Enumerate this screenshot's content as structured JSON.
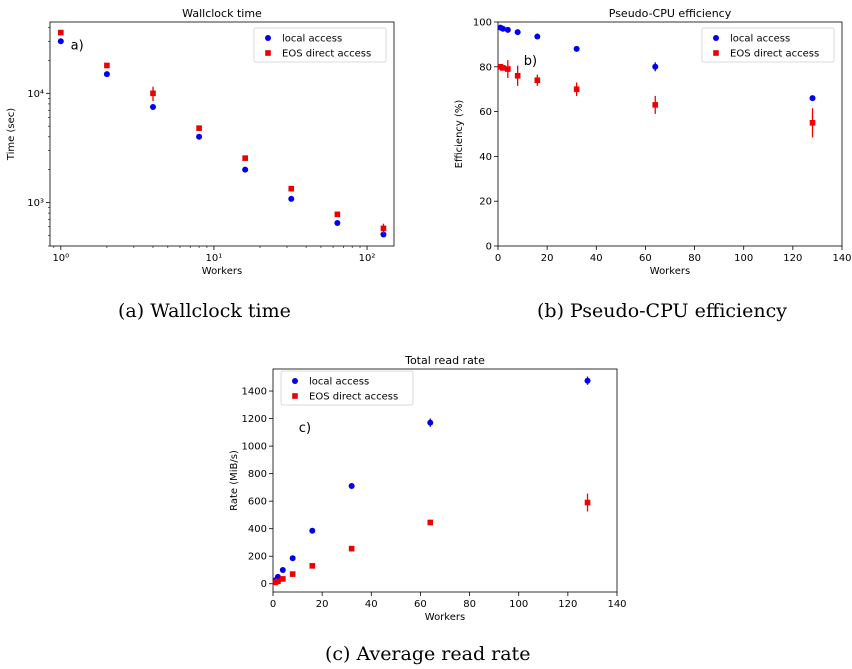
{
  "colors": {
    "local": "#0000ee",
    "eos": "#ee0000",
    "errorbar_local": "#0000ee",
    "errorbar_eos": "#ee0000"
  },
  "captions": {
    "a": "(a) Wallclock time",
    "b": "(b) Pseudo-CPU efficiency",
    "c": "(c) Average read rate"
  },
  "chart_data": [
    {
      "type": "scatter",
      "title": "Wallclock time",
      "panel_label": "a)",
      "xlabel": "Workers",
      "ylabel": "Time (sec)",
      "xscale": "log",
      "yscale": "log",
      "xlim": [
        0.85,
        150
      ],
      "ylim": [
        400,
        45000
      ],
      "xticks": [
        1,
        10,
        100
      ],
      "xtick_labels": [
        "10⁰",
        "10¹",
        "10²"
      ],
      "yticks": [
        1000,
        10000
      ],
      "ytick_labels": [
        "10³",
        "10⁴"
      ],
      "legend_position": "top-right",
      "grid": false,
      "series": [
        {
          "name": "local access",
          "marker": "circle",
          "color_key": "local",
          "x": [
            1,
            2,
            4,
            8,
            16,
            32,
            64,
            128
          ],
          "y": [
            30000,
            15000,
            7500,
            4000,
            2000,
            1080,
            650,
            510
          ],
          "yerr": [
            0,
            0,
            0,
            0,
            0,
            0,
            0,
            0
          ]
        },
        {
          "name": "EOS direct access",
          "marker": "square",
          "color_key": "eos",
          "x": [
            1,
            2,
            4,
            8,
            16,
            32,
            64,
            128
          ],
          "y": [
            36000,
            18000,
            10000,
            4800,
            2550,
            1340,
            780,
            580
          ],
          "yerr": [
            0,
            0,
            1500,
            0,
            0,
            0,
            0,
            60
          ]
        }
      ]
    },
    {
      "type": "scatter",
      "title": "Pseudo-CPU efficiency",
      "panel_label": "b)",
      "xlabel": "Workers",
      "ylabel": "Efficiency (%)",
      "xlim": [
        0,
        140
      ],
      "ylim": [
        0,
        100
      ],
      "xticks": [
        0,
        20,
        40,
        60,
        80,
        100,
        120,
        140
      ],
      "yticks": [
        0,
        20,
        40,
        60,
        80,
        100
      ],
      "legend_position": "top-right",
      "grid": false,
      "series": [
        {
          "name": "local access",
          "marker": "circle",
          "color_key": "local",
          "x": [
            1,
            2,
            4,
            8,
            16,
            32,
            64,
            128
          ],
          "y": [
            97.5,
            97,
            96.5,
            95.5,
            93.5,
            88,
            80,
            66
          ],
          "yerr": [
            0,
            0,
            0,
            0,
            0,
            0,
            2,
            0
          ]
        },
        {
          "name": "EOS direct access",
          "marker": "square",
          "color_key": "eos",
          "x": [
            1,
            2,
            4,
            8,
            16,
            32,
            64,
            128
          ],
          "y": [
            80,
            79.5,
            79,
            76,
            74,
            70,
            63,
            55
          ],
          "yerr": [
            0,
            1,
            4,
            4.5,
            2.5,
            3,
            4,
            6.5
          ]
        }
      ]
    },
    {
      "type": "scatter",
      "title": "Total read rate",
      "panel_label": "c)",
      "xlabel": "Workers",
      "ylabel": "Rate (MiB/s)",
      "xlim": [
        0,
        140
      ],
      "ylim": [
        -60,
        1560
      ],
      "xticks": [
        0,
        20,
        40,
        60,
        80,
        100,
        120,
        140
      ],
      "yticks": [
        0,
        200,
        400,
        600,
        800,
        1000,
        1200,
        1400
      ],
      "legend_position": "top-left",
      "grid": false,
      "series": [
        {
          "name": "local access",
          "marker": "circle",
          "color_key": "local",
          "x": [
            1,
            2,
            4,
            8,
            16,
            32,
            64,
            128
          ],
          "y": [
            25,
            50,
            100,
            185,
            385,
            710,
            1170,
            1475
          ],
          "yerr": [
            0,
            0,
            0,
            0,
            0,
            0,
            30,
            30
          ]
        },
        {
          "name": "EOS direct access",
          "marker": "square",
          "color_key": "eos",
          "x": [
            1,
            2,
            4,
            8,
            16,
            32,
            64,
            128
          ],
          "y": [
            10,
            18,
            35,
            70,
            130,
            255,
            445,
            590
          ],
          "yerr": [
            0,
            0,
            0,
            0,
            0,
            0,
            20,
            65
          ]
        }
      ]
    }
  ]
}
